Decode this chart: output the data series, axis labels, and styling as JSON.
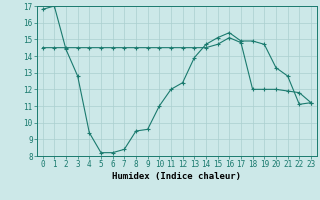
{
  "xlabel": "Humidex (Indice chaleur)",
  "background_color": "#cce8e8",
  "line_color": "#1a7a6e",
  "grid_color": "#aacfcf",
  "xlim": [
    -0.5,
    23.5
  ],
  "ylim": [
    8,
    17
  ],
  "yticks": [
    8,
    9,
    10,
    11,
    12,
    13,
    14,
    15,
    16,
    17
  ],
  "xticks": [
    0,
    1,
    2,
    3,
    4,
    5,
    6,
    7,
    8,
    9,
    10,
    11,
    12,
    13,
    14,
    15,
    16,
    17,
    18,
    19,
    20,
    21,
    22,
    23
  ],
  "series1_x": [
    0,
    1,
    2,
    3,
    4,
    5,
    6,
    7,
    8,
    9,
    10,
    11,
    12,
    13,
    14,
    15,
    16,
    17,
    18,
    19,
    20,
    21,
    22,
    23
  ],
  "series1_y": [
    16.8,
    17.0,
    14.4,
    12.8,
    9.4,
    8.2,
    8.2,
    8.4,
    9.5,
    9.6,
    11.0,
    12.0,
    12.4,
    13.9,
    14.7,
    15.1,
    15.4,
    14.9,
    14.9,
    14.7,
    13.3,
    12.8,
    11.1,
    11.2
  ],
  "series2_x": [
    0,
    1,
    2,
    3,
    4,
    5,
    6,
    7,
    8,
    9,
    10,
    11,
    12,
    13,
    14,
    15,
    16,
    17,
    18,
    19,
    20,
    21,
    22,
    23
  ],
  "series2_y": [
    14.5,
    14.5,
    14.5,
    14.5,
    14.5,
    14.5,
    14.5,
    14.5,
    14.5,
    14.5,
    14.5,
    14.5,
    14.5,
    14.5,
    14.5,
    14.7,
    15.1,
    14.8,
    12.0,
    12.0,
    12.0,
    11.9,
    11.8,
    11.2
  ],
  "tick_fontsize": 5.5,
  "xlabel_fontsize": 6.5
}
